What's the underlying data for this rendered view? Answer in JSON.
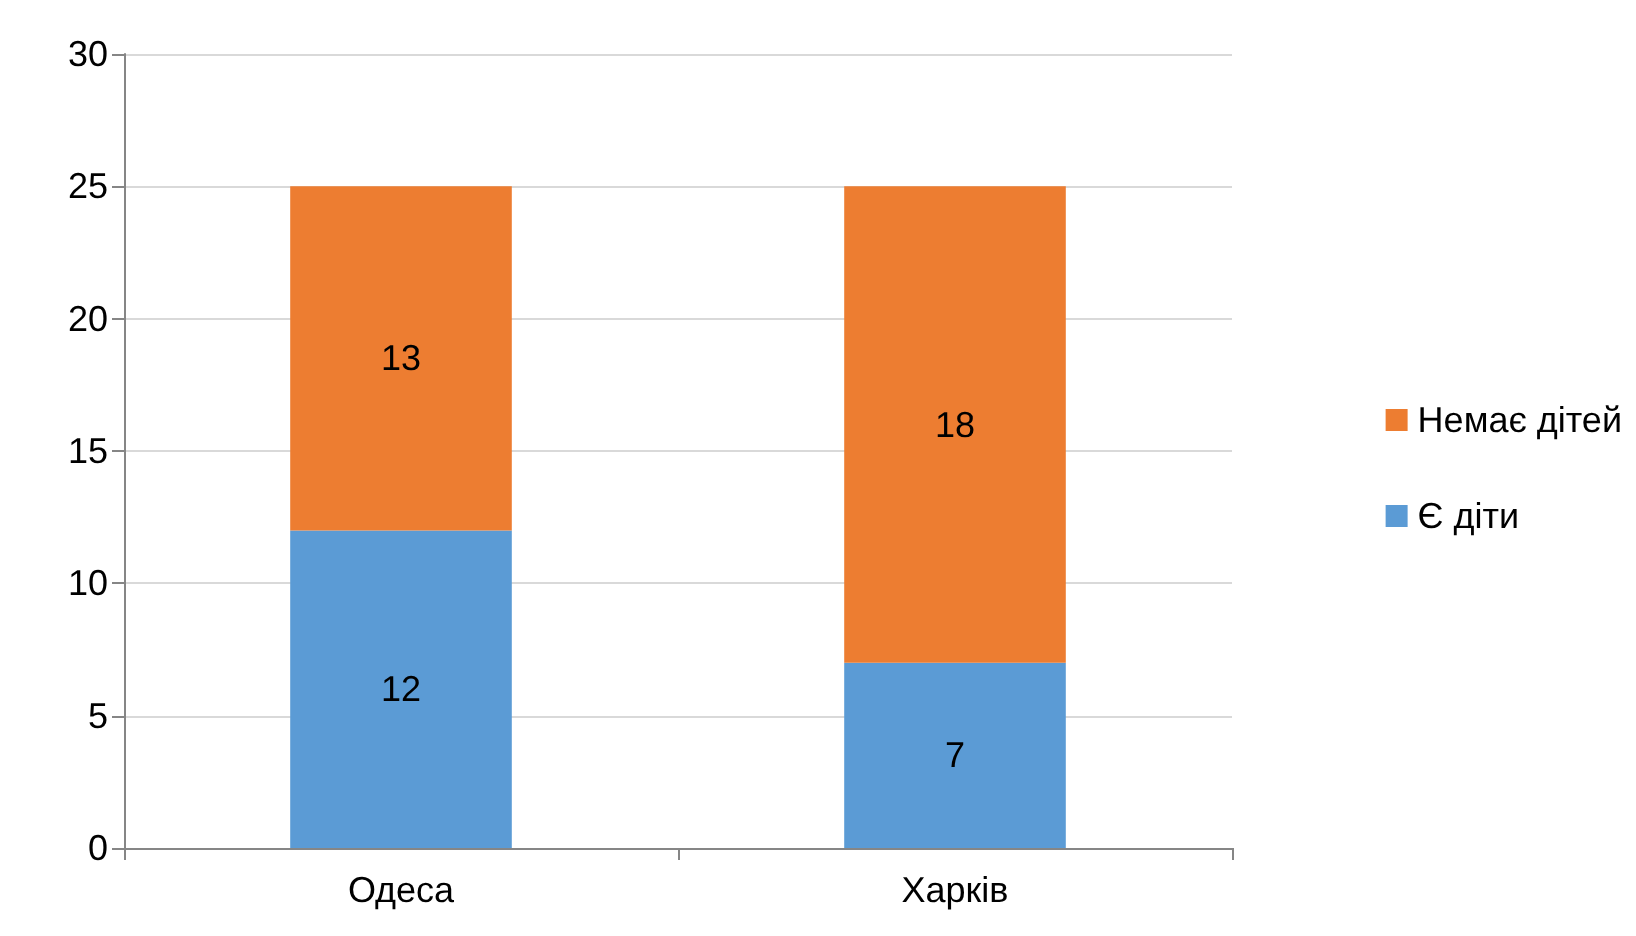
{
  "chart_data": {
    "type": "bar",
    "stacked": true,
    "categories": [
      "Одеса",
      "Харків"
    ],
    "series": [
      {
        "name": "Є діти",
        "color": "#5b9bd5",
        "values": [
          12,
          7
        ]
      },
      {
        "name": "Немає дітей",
        "color": "#ed7d31",
        "values": [
          13,
          18
        ]
      }
    ],
    "ylim": [
      0,
      30
    ],
    "yticks": [
      0,
      5,
      10,
      15,
      20,
      25,
      30
    ],
    "grid": "y",
    "legend": "right",
    "data_labels": true
  }
}
